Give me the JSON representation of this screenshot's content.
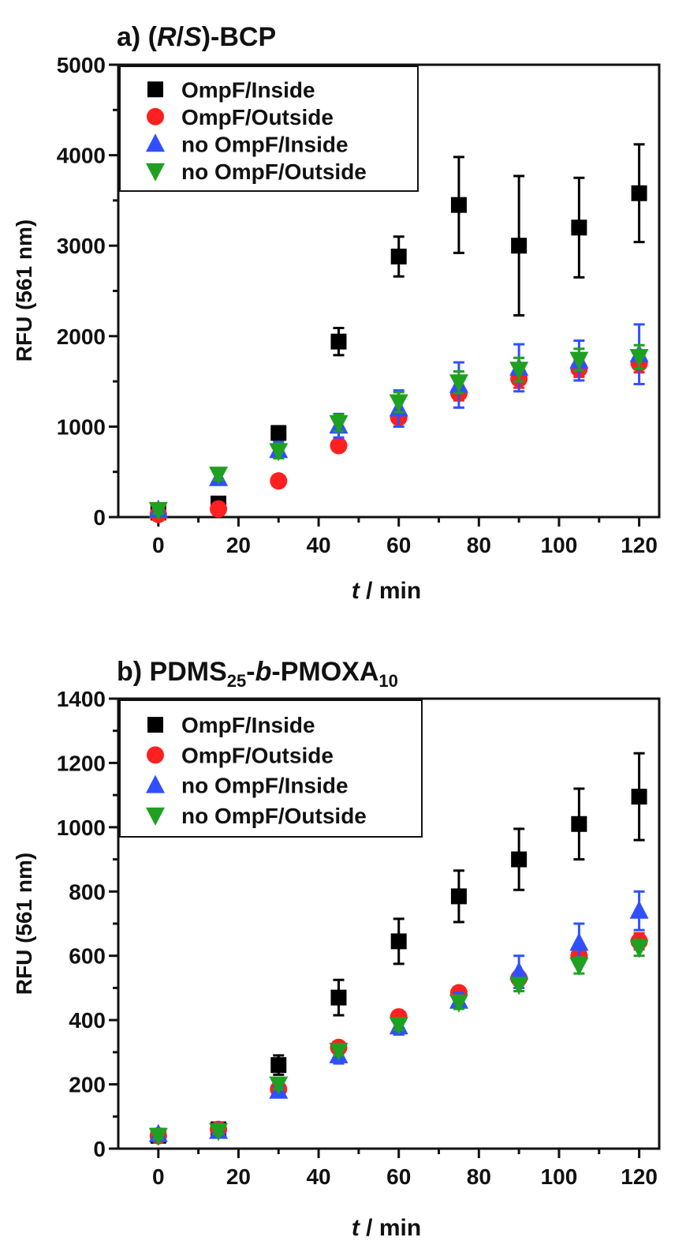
{
  "chart_data": [
    {
      "type": "scatter",
      "title": {
        "prefix": "a) (",
        "italic1": "R",
        "mid": "/",
        "italic2": "S",
        "suffix": ")-BCP"
      },
      "xlabel": {
        "italic": "t",
        "rest": " / min"
      },
      "ylabel": "RFU (561 nm)",
      "xlim": [
        -10,
        125
      ],
      "ylim": [
        0,
        5000
      ],
      "xticks": [
        0,
        20,
        40,
        60,
        80,
        100,
        120
      ],
      "yticks": [
        0,
        1000,
        2000,
        3000,
        4000,
        5000
      ],
      "legend_position": "top-left",
      "x": [
        0,
        15,
        30,
        45,
        60,
        75,
        90,
        105,
        120
      ],
      "series": [
        {
          "name": "OmpF/Inside",
          "marker": "square",
          "color": "#000000",
          "values": [
            50,
            150,
            930,
            1940,
            2880,
            3450,
            3000,
            3200,
            3580
          ],
          "errors": [
            20,
            30,
            40,
            150,
            220,
            530,
            770,
            550,
            540
          ]
        },
        {
          "name": "OmpF/Outside",
          "marker": "circle",
          "color": "#ff2020",
          "values": [
            30,
            90,
            400,
            790,
            1100,
            1370,
            1530,
            1640,
            1700
          ],
          "errors": [
            20,
            30,
            30,
            40,
            60,
            80,
            100,
            90,
            100
          ]
        },
        {
          "name": "no OmpF/Inside",
          "marker": "triangle-up",
          "color": "#3050ff",
          "values": [
            80,
            430,
            740,
            1010,
            1200,
            1460,
            1650,
            1730,
            1800
          ],
          "errors": [
            40,
            60,
            90,
            130,
            200,
            250,
            260,
            220,
            330
          ]
        },
        {
          "name": "no OmpF/Outside",
          "marker": "triangle-down",
          "color": "#20a020",
          "values": [
            80,
            470,
            730,
            1040,
            1270,
            1490,
            1630,
            1740,
            1770
          ],
          "errors": [
            40,
            60,
            80,
            90,
            110,
            120,
            130,
            120,
            130
          ]
        }
      ]
    },
    {
      "type": "scatter",
      "title": {
        "prefix": "b) PDMS",
        "sub1": "25",
        "mid": "-",
        "italic": "b",
        "suffix": "-PMOXA",
        "sub2": "10"
      },
      "xlabel": {
        "italic": "t",
        "rest": " / min"
      },
      "ylabel": "RFU (561 nm)",
      "xlim": [
        -10,
        125
      ],
      "ylim": [
        0,
        1400
      ],
      "xticks": [
        0,
        20,
        40,
        60,
        80,
        100,
        120
      ],
      "yticks": [
        0,
        200,
        400,
        600,
        800,
        1000,
        1200,
        1400
      ],
      "legend_position": "top-left",
      "x": [
        0,
        15,
        30,
        45,
        60,
        75,
        90,
        105,
        120
      ],
      "series": [
        {
          "name": "OmpF/Inside",
          "marker": "square",
          "color": "#000000",
          "values": [
            40,
            60,
            260,
            470,
            645,
            785,
            900,
            1010,
            1095
          ],
          "errors": [
            10,
            15,
            30,
            55,
            70,
            80,
            95,
            110,
            135
          ]
        },
        {
          "name": "OmpF/Outside",
          "marker": "circle",
          "color": "#ff2020",
          "values": [
            40,
            60,
            185,
            315,
            410,
            485,
            530,
            600,
            645
          ],
          "errors": [
            10,
            10,
            15,
            15,
            15,
            15,
            20,
            25,
            25
          ]
        },
        {
          "name": "no OmpF/Inside",
          "marker": "triangle-up",
          "color": "#3050ff",
          "values": [
            45,
            55,
            180,
            290,
            380,
            460,
            550,
            640,
            740
          ],
          "errors": [
            10,
            10,
            15,
            25,
            25,
            25,
            50,
            60,
            60
          ]
        },
        {
          "name": "no OmpF/Outside",
          "marker": "triangle-down",
          "color": "#20a020",
          "values": [
            40,
            55,
            200,
            305,
            385,
            455,
            510,
            570,
            625
          ],
          "errors": [
            10,
            10,
            15,
            15,
            15,
            20,
            20,
            25,
            25
          ]
        }
      ]
    }
  ]
}
